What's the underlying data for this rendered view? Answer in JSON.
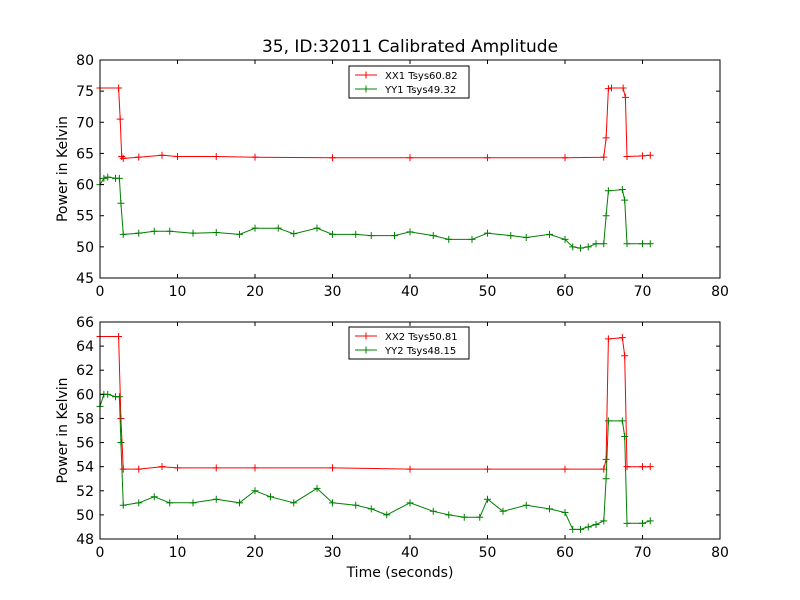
{
  "title": "35, ID:32011 Calibrated Amplitude",
  "colors": {
    "red": "#ff0000",
    "green": "#008000",
    "frame": "#000000",
    "background": "#ffffff"
  },
  "chart_data": [
    {
      "type": "line",
      "ylabel": "Power in Kelvin",
      "xlabel": "",
      "xlim": [
        0,
        80
      ],
      "ylim": [
        45,
        80
      ],
      "grid": false,
      "legend_placement": "top-center",
      "marker": "plus",
      "xticks": [
        "0",
        "10",
        "20",
        "30",
        "40",
        "50",
        "60",
        "70",
        "80"
      ],
      "yticks": [
        "45",
        "50",
        "55",
        "60",
        "65",
        "70",
        "75",
        "80"
      ],
      "series": [
        {
          "name": "XX1 Tsys60.82",
          "color": "#ff0000",
          "x": [
            0,
            2.4,
            2.6,
            2.8,
            3,
            5,
            8,
            10,
            15,
            20,
            30,
            40,
            50,
            60,
            65,
            65.3,
            65.6,
            66,
            67.5,
            67.8,
            68,
            70,
            71
          ],
          "y": [
            75.5,
            75.5,
            70.5,
            64.5,
            64.2,
            64.4,
            64.7,
            64.5,
            64.5,
            64.4,
            64.3,
            64.3,
            64.3,
            64.3,
            64.4,
            67.5,
            75.4,
            75.5,
            75.5,
            74,
            64.5,
            64.6,
            64.7
          ]
        },
        {
          "name": "YY1 Tsys49.32",
          "color": "#008000",
          "x": [
            0,
            0.5,
            1,
            2,
            2.5,
            2.7,
            3,
            5,
            7,
            9,
            12,
            15,
            18,
            20,
            23,
            25,
            28,
            30,
            33,
            35,
            38,
            40,
            43,
            45,
            48,
            50,
            53,
            55,
            58,
            60,
            61,
            62,
            63,
            64,
            65,
            65.3,
            65.6,
            67.4,
            67.7,
            68,
            70,
            71
          ],
          "y": [
            60,
            61,
            61.2,
            61,
            61,
            57,
            52,
            52.2,
            52.5,
            52.5,
            52.2,
            52.3,
            52,
            53,
            53,
            52.1,
            53,
            52,
            52,
            51.8,
            51.8,
            52.4,
            51.8,
            51.2,
            51.2,
            52.2,
            51.8,
            51.5,
            52,
            51.2,
            50,
            49.8,
            50,
            50.5,
            50.5,
            55,
            59,
            59.2,
            57.5,
            50.5,
            50.5,
            50.5
          ]
        }
      ]
    },
    {
      "type": "line",
      "ylabel": "Power in Kelvin",
      "xlabel": "Time (seconds)",
      "xlim": [
        0,
        80
      ],
      "ylim": [
        48,
        66
      ],
      "grid": false,
      "legend_placement": "top-center",
      "marker": "plus",
      "xticks": [
        "0",
        "10",
        "20",
        "30",
        "40",
        "50",
        "60",
        "70",
        "80"
      ],
      "yticks": [
        "48",
        "50",
        "52",
        "54",
        "56",
        "58",
        "60",
        "62",
        "64",
        "66"
      ],
      "series": [
        {
          "name": "XX2 Tsys50.81",
          "color": "#ff0000",
          "x": [
            0,
            2.4,
            2.7,
            3,
            5,
            8,
            10,
            15,
            20,
            30,
            40,
            50,
            60,
            65,
            65.3,
            65.6,
            67.4,
            67.7,
            68,
            70,
            71
          ],
          "y": [
            64.8,
            64.8,
            58,
            53.8,
            53.8,
            54,
            53.9,
            53.9,
            53.9,
            53.9,
            53.8,
            53.8,
            53.8,
            53.8,
            54.6,
            64.6,
            64.7,
            63.2,
            54,
            54,
            54
          ],
          "y_note": ""
        },
        {
          "name": "YY2 Tsys48.15",
          "color": "#008000",
          "x": [
            0,
            0.5,
            1,
            2,
            2.5,
            2.7,
            3,
            5,
            7,
            9,
            12,
            15,
            18,
            20,
            22,
            25,
            28,
            30,
            33,
            35,
            37,
            40,
            43,
            45,
            47,
            49,
            50,
            52,
            55,
            58,
            60,
            61,
            62,
            63,
            64,
            65,
            65.3,
            65.6,
            67.4,
            67.7,
            68,
            70,
            71
          ],
          "y": [
            59,
            60,
            60,
            59.8,
            59.8,
            56,
            50.8,
            51,
            51.5,
            51,
            51,
            51.3,
            51,
            52,
            51.5,
            51,
            52.2,
            51,
            50.8,
            50.5,
            50,
            51,
            50.3,
            50,
            49.8,
            49.8,
            51.3,
            50.3,
            50.8,
            50.5,
            50.2,
            48.8,
            48.8,
            49,
            49.2,
            49.5,
            53,
            57.8,
            57.8,
            56.5,
            49.3,
            49.3,
            49.5
          ]
        }
      ]
    }
  ]
}
